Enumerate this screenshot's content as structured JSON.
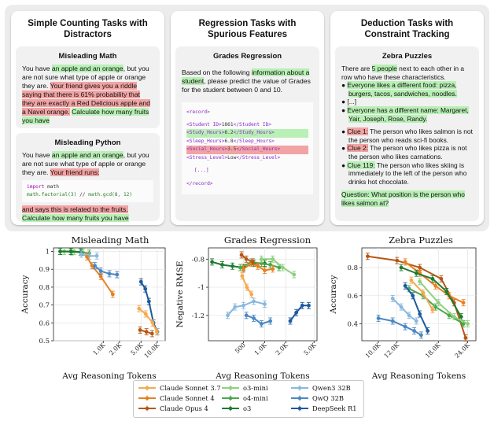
{
  "top": {
    "col1": {
      "title": "Simple Counting Tasks with Distractors",
      "box1": {
        "title": "Misleading Math",
        "t1": "You have ",
        "t2": "an apple and an orange",
        "t3": ", but you are not sure what type of apple or orange they are. ",
        "t4": "Your friend gives you a riddle saying that there is 61% probability that they are exactly a Red Delicious apple and a Navel orange.",
        "t5": " ",
        "t6": "Calculate how many fruits you have"
      },
      "box2": {
        "title": "Misleading Python",
        "t1": "You have ",
        "t2": "an apple and an orange",
        "t3": ", but you are not sure what type of apple or orange they are. ",
        "t4": "Your friend runs:",
        "code1a": "import",
        "code1b": " math",
        "code2a": "math.factorial(3)",
        "code2b": " // ",
        "code2c": "math.gcd(8, 12)",
        "t5": "and says this is related to the fruits.",
        "t6": "Calculate how many fruits you have"
      }
    },
    "col2": {
      "title": "Regression Tasks with Spurious Features",
      "box": {
        "title": "Grades Regression",
        "t1": "Based on the following ",
        "t2": "information about a student",
        "t3": ", please predict the value of Grades for the student between 0 and 10.",
        "r1": "<record>",
        "r2a": "<Student ID>",
        "r2b": "1861",
        "r2c": "</Student ID>",
        "r3a": "<Study_Hours>",
        "r3b": "6.2",
        "r3c": "</Study_Hours>",
        "r4a": "<Sleep_Hours>",
        "r4b": "6.8",
        "r4c": "</Sleep_Hours>",
        "r5a": "<Social_Hours>",
        "r5b": "3.5",
        "r5c": "</Social_Hours>",
        "r6a": "<Stress_Level>",
        "r6b": "Low",
        "r6c": "</Stress_Level>",
        "r7": "[...]",
        "r8": "</record>"
      }
    },
    "col3": {
      "title": "Deduction Tasks with Constraint Tracking",
      "box": {
        "title": "Zebra Puzzles",
        "t1": "There are ",
        "t2": "5 people",
        "t3": " next to each other in a row who have these characteristics.",
        "b1": "Everyone likes a different food: pizza, burgers, tacos, sandwiches, noodles.",
        "b2": "[...]",
        "b3": "Everyone has a different name: Margaret, Yair, Joseph, Rose, Randy.",
        "c1a": "Clue 1:",
        "c1b": " The person who likes salmon is not the person who reads sci-fi books.",
        "c2a": "Clue 2:",
        "c2b": " The person who likes pizza is not the person who likes carnations.",
        "c3a": "Clue 119:",
        "c3b": " The person who likes skiing is immediately to the left of the person who drinks hot chocolate.",
        "q": "Question: What position is the person who likes salmon at?",
        "bullet": "●"
      }
    }
  },
  "legend": [
    {
      "name": "Claude Sonnet 3.7",
      "color": "#f5a94f"
    },
    {
      "name": "Claude Sonnet 4",
      "color": "#e8801e"
    },
    {
      "name": "Claude Opus 4",
      "color": "#b65713"
    },
    {
      "name": "o3-mini",
      "color": "#8fd07e"
    },
    {
      "name": "o4-mini",
      "color": "#49a84a"
    },
    {
      "name": "o3",
      "color": "#1e7a31"
    },
    {
      "name": "Qwen3 32B",
      "color": "#89b8dd"
    },
    {
      "name": "QwQ 32B",
      "color": "#4b87c2"
    },
    {
      "name": "DeepSeek R1",
      "color": "#1d5a9e"
    }
  ],
  "chart_data": [
    {
      "type": "line",
      "title": "Misleading Math",
      "xlabel": "Avg Reasoning Tokens",
      "ylabel": "Accuracy",
      "xscale": "log",
      "xlim": [
        120,
        14000
      ],
      "ylim": [
        0.5,
        1.02
      ],
      "xticks": [
        {
          "v": 1000,
          "l": "1.0K"
        },
        {
          "v": 2000,
          "l": "2.0K"
        },
        {
          "v": 5000,
          "l": "5.0K"
        },
        {
          "v": 10000,
          "l": "10.0K"
        }
      ],
      "yticks": [
        0.5,
        0.6,
        0.7,
        0.8,
        0.9,
        1.0
      ],
      "grid": true,
      "series": [
        {
          "name": "o3-mini",
          "x": [
            190,
            290,
            420
          ],
          "y": [
            1.0,
            1.0,
            0.995
          ]
        },
        {
          "name": "o4-mini",
          "x": [
            160,
            260,
            400,
            550
          ],
          "y": [
            1.0,
            0.998,
            0.995,
            0.99
          ]
        },
        {
          "name": "o3",
          "x": [
            160,
            250,
            380
          ],
          "y": [
            1.0,
            1.0,
            0.997
          ]
        },
        {
          "name": "Qwen3 32B",
          "x": [
            390,
            550,
            760
          ],
          "y": [
            0.985,
            0.975,
            0.975
          ]
        },
        {
          "name": "Claude Sonnet 4",
          "x": [
            500,
            620,
            900,
            1500
          ],
          "y": [
            0.97,
            0.92,
            0.86,
            0.76
          ]
        },
        {
          "name": "QwQ 32B",
          "x": [
            700,
            900,
            1300,
            1800
          ],
          "y": [
            0.92,
            0.89,
            0.875,
            0.87
          ]
        },
        {
          "name": "DeepSeek R1",
          "x": [
            5000,
            6000,
            7000,
            8500,
            10000
          ],
          "y": [
            0.83,
            0.79,
            0.72,
            0.6,
            0.55
          ]
        },
        {
          "name": "Claude Sonnet 3.7",
          "x": [
            4600,
            6100,
            8200,
            9800
          ],
          "y": [
            0.68,
            0.65,
            0.6,
            0.55
          ]
        },
        {
          "name": "Claude Opus 4",
          "x": [
            4800,
            6300,
            8000
          ],
          "y": [
            0.56,
            0.55,
            0.54
          ]
        }
      ]
    },
    {
      "type": "line",
      "title": "Grades Regression",
      "xlabel": "Avg Reasoning Tokens",
      "ylabel": "Negative RMSE",
      "xscale": "log",
      "xlim": [
        160,
        5500
      ],
      "ylim": [
        -1.38,
        -0.72
      ],
      "xticks": [
        {
          "v": 500,
          "l": "500"
        },
        {
          "v": 1000,
          "l": "1.0K"
        },
        {
          "v": 2000,
          "l": "2.0K"
        },
        {
          "v": 5000,
          "l": "5.0K"
        }
      ],
      "yticks": [
        -1.2,
        -1.0,
        -0.8
      ],
      "grid": true,
      "series": [
        {
          "name": "o3",
          "x": [
            180,
            250,
            350,
            500,
            700,
            1000
          ],
          "y": [
            -0.82,
            -0.84,
            -0.85,
            -0.86,
            -0.83,
            -0.83
          ]
        },
        {
          "name": "o4-mini",
          "x": [
            450,
            650,
            900,
            1200,
            1600
          ],
          "y": [
            -0.86,
            -0.82,
            -0.83,
            -0.84,
            -0.86
          ]
        },
        {
          "name": "o3-mini",
          "x": [
            900,
            1300,
            1800,
            2600
          ],
          "y": [
            -0.8,
            -0.8,
            -0.86,
            -0.91
          ]
        },
        {
          "name": "Claude Sonnet 4",
          "x": [
            500,
            650,
            800,
            1000,
            1300
          ],
          "y": [
            -0.87,
            -0.83,
            -0.85,
            -0.88,
            -0.87
          ]
        },
        {
          "name": "Claude Opus 4",
          "x": [
            470,
            550,
            680
          ],
          "y": [
            -0.77,
            -0.8,
            -0.82
          ]
        },
        {
          "name": "Claude Sonnet 3.7",
          "x": [
            480,
            560,
            650
          ],
          "y": [
            -0.92,
            -1.0,
            -1.05
          ]
        },
        {
          "name": "Qwen3 32B",
          "x": [
            300,
            380,
            500,
            700,
            1000
          ],
          "y": [
            -1.2,
            -1.14,
            -1.13,
            -1.1,
            -1.12
          ]
        },
        {
          "name": "QwQ 32B",
          "x": [
            550,
            700,
            900,
            1200
          ],
          "y": [
            -1.2,
            -1.22,
            -1.26,
            -1.24
          ]
        },
        {
          "name": "DeepSeek R1",
          "x": [
            2300,
            2800,
            3400,
            4200
          ],
          "y": [
            -1.24,
            -1.18,
            -1.13,
            -1.13
          ]
        }
      ]
    },
    {
      "type": "line",
      "title": "Zebra Puzzles",
      "xlabel": "Avg Reasoning Tokens",
      "ylabel": "Accuracy",
      "xscale": "log",
      "xlim": [
        8500,
        26000
      ],
      "ylim": [
        0.28,
        0.94
      ],
      "xticks": [
        {
          "v": 10000,
          "l": "10.0K"
        },
        {
          "v": 12000,
          "l": "12.0K"
        },
        {
          "v": 18000,
          "l": "18.0K"
        },
        {
          "v": 24000,
          "l": "24.0K"
        }
      ],
      "yticks": [
        0.4,
        0.6,
        0.8
      ],
      "grid": true,
      "series": [
        {
          "name": "Claude Opus 4",
          "x": [
            9000,
            12000,
            15000,
            18500,
            21000,
            23500
          ],
          "y": [
            0.88,
            0.85,
            0.8,
            0.72,
            0.55,
            0.3
          ]
        },
        {
          "name": "Claude Sonnet 4",
          "x": [
            13000,
            15000,
            17500,
            20000,
            23000
          ],
          "y": [
            0.84,
            0.76,
            0.67,
            0.6,
            0.55
          ]
        },
        {
          "name": "o3",
          "x": [
            12500,
            14500,
            17000,
            19500,
            22500
          ],
          "y": [
            0.8,
            0.76,
            0.72,
            0.63,
            0.45
          ]
        },
        {
          "name": "o4-mini",
          "x": [
            13500,
            15500,
            17500,
            20000,
            23000
          ],
          "y": [
            0.65,
            0.6,
            0.52,
            0.46,
            0.4
          ]
        },
        {
          "name": "o3-mini",
          "x": [
            15000,
            18000,
            21000,
            24000
          ],
          "y": [
            0.7,
            0.55,
            0.45,
            0.4
          ]
        },
        {
          "name": "Claude Sonnet 3.7",
          "x": [
            13800,
            15500,
            17000
          ],
          "y": [
            0.71,
            0.62,
            0.5
          ]
        },
        {
          "name": "Qwen3 32B",
          "x": [
            11500,
            12500,
            13500,
            14500
          ],
          "y": [
            0.58,
            0.52,
            0.46,
            0.42
          ]
        },
        {
          "name": "QwQ 32B",
          "x": [
            10000,
            11500,
            13000,
            14200,
            15200
          ],
          "y": [
            0.44,
            0.42,
            0.38,
            0.35,
            0.32
          ]
        },
        {
          "name": "DeepSeek R1",
          "x": [
            13000,
            14000,
            15000,
            16200
          ],
          "y": [
            0.67,
            0.6,
            0.47,
            0.35
          ]
        }
      ]
    }
  ]
}
